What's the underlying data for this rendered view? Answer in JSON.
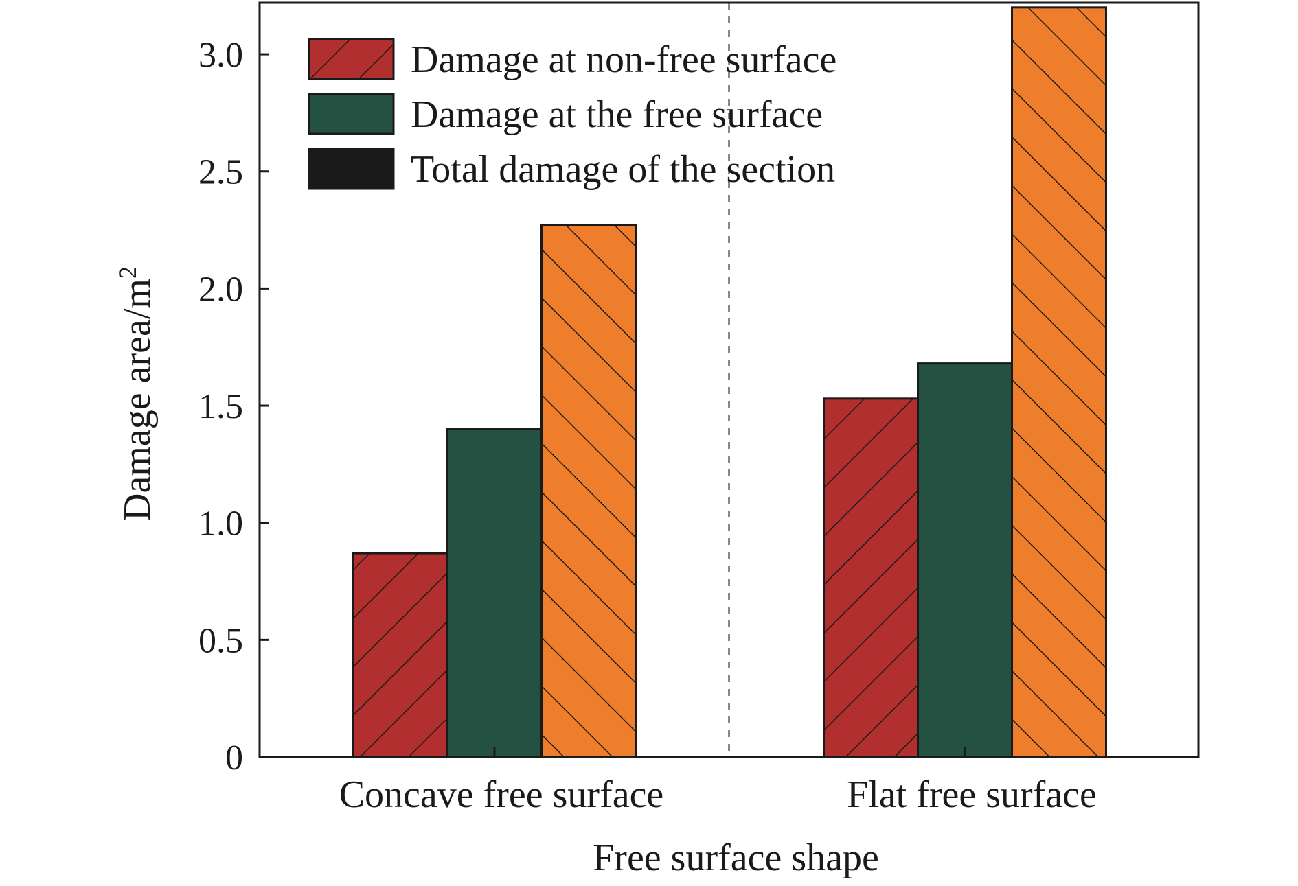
{
  "chart_data": {
    "type": "bar",
    "title": "",
    "xlabel": "Free surface shape",
    "ylabel": "Damage area/m",
    "ylabel_superscript": "2",
    "categories": [
      "Concave free surface",
      "Flat free surface"
    ],
    "series": [
      {
        "name": "Damage at non-free surface",
        "values": [
          0.87,
          1.53
        ],
        "color": "#b22f2f",
        "pattern": "hatch-forward"
      },
      {
        "name": "Damage at the free surface",
        "values": [
          1.4,
          1.68
        ],
        "color": "#245142",
        "pattern": "none"
      },
      {
        "name": "Total damage of the section",
        "values": [
          2.27,
          3.2
        ],
        "color": "#ef7e2c",
        "pattern": "hatch-backward"
      }
    ],
    "legend_colors": [
      "#b22f2f",
      "#245142",
      "#1a1a1a"
    ],
    "yticks": [
      0,
      0.5,
      1.0,
      1.5,
      2.0,
      2.5,
      3.0
    ],
    "ytick_labels": [
      "0",
      "0.5",
      "1.0",
      "1.5",
      "2.0",
      "2.5",
      "3.0"
    ],
    "ylim": [
      0,
      3.22
    ],
    "grid": false,
    "legend_position": "top-left",
    "category_divider": "dashed"
  }
}
